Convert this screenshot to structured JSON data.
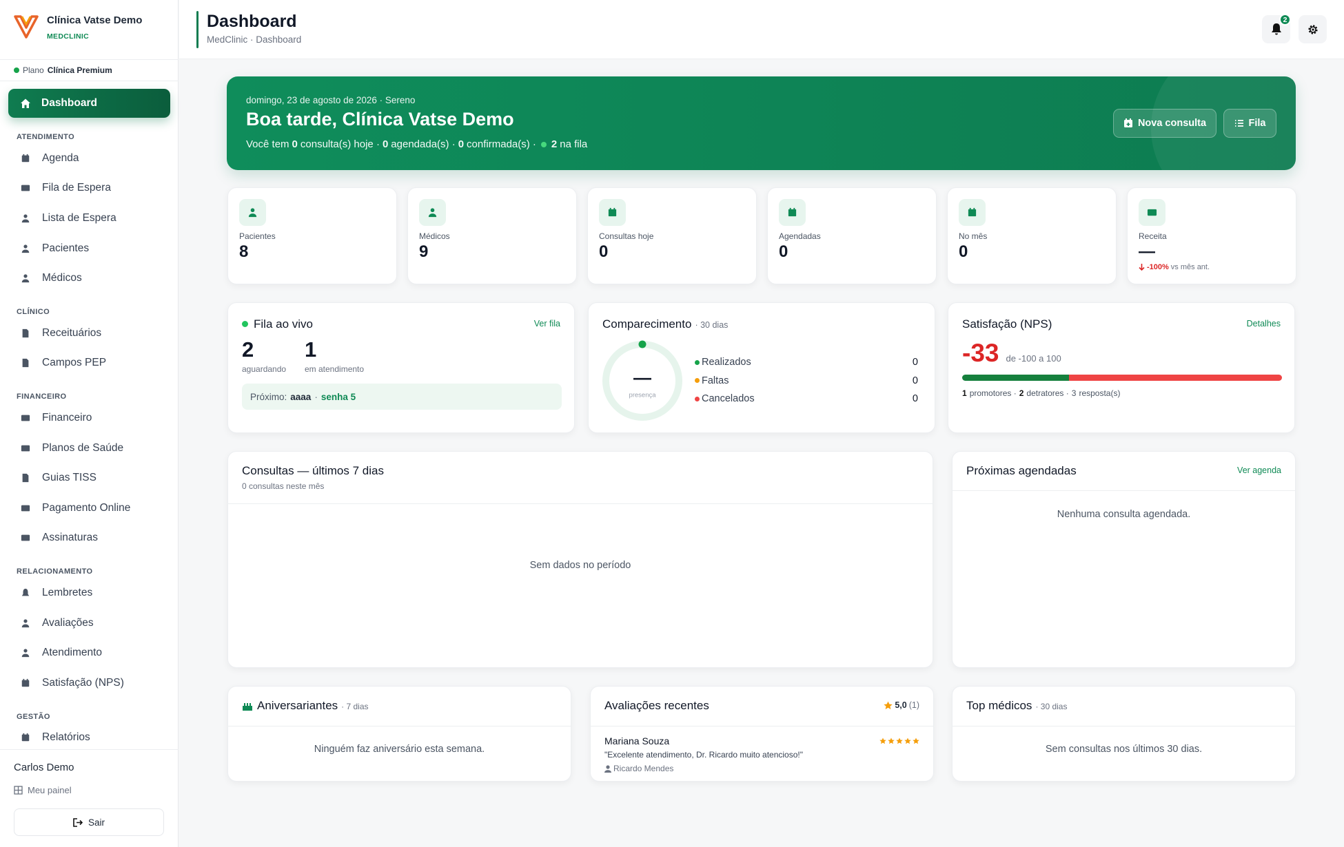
{
  "sidebar": {
    "brand": "Clínica Vatse Demo",
    "brand_sub": "MEDCLINIC",
    "plan_prefix": "Plano",
    "plan": "Clínica Premium",
    "active": "Dashboard",
    "sections": [
      {
        "title": "ATENDIMENTO",
        "items": [
          "Agenda",
          "Fila de Espera",
          "Lista de Espera",
          "Pacientes",
          "Médicos"
        ]
      },
      {
        "title": "CLÍNICO",
        "items": [
          "Receituários",
          "Campos PEP"
        ]
      },
      {
        "title": "FINANCEIRO",
        "items": [
          "Financeiro",
          "Planos de Saúde",
          "Guias TISS",
          "Pagamento Online",
          "Assinaturas"
        ]
      },
      {
        "title": "RELACIONAMENTO",
        "items": [
          "Lembretes",
          "Avaliações",
          "Atendimento",
          "Satisfação (NPS)"
        ]
      },
      {
        "title": "GESTÃO",
        "items": [
          "Relatórios"
        ]
      }
    ],
    "user": "Carlos Demo",
    "user_link": "Meu painel",
    "logout": "Sair"
  },
  "header": {
    "title": "Dashboard",
    "breadcrumb": "MedClinic · Dashboard",
    "notifications": 2
  },
  "hero": {
    "date": "domingo, 23 de agosto de 2026 · Sereno",
    "greeting": "Boa tarde, Clínica Vatse Demo",
    "summary": {
      "prefix": "Você tem",
      "today": 0,
      "today_label": "consulta(s) hoje ·",
      "scheduled": 0,
      "scheduled_label": "agendada(s) ·",
      "confirmed": 0,
      "confirmed_label": "confirmada(s) ·",
      "queue": 2,
      "queue_label": "na fila"
    },
    "buttons": [
      "Nova consulta",
      "Fila"
    ]
  },
  "stats": [
    {
      "label": "Pacientes",
      "value": 8
    },
    {
      "label": "Médicos",
      "value": 9
    },
    {
      "label": "Consultas hoje",
      "value": 0
    },
    {
      "label": "Agendadas",
      "value": 0
    },
    {
      "label": "No mês",
      "value": 0
    },
    {
      "label": "Receita",
      "value": "—",
      "change": "-100%",
      "change_note": "vs mês ant."
    }
  ],
  "queue": {
    "title": "Fila ao vivo",
    "link": "Ver fila",
    "waiting": 2,
    "waiting_label": "aguardando",
    "serving": 1,
    "serving_label": "em atendimento",
    "next_label": "Próximo:",
    "next_name": "aaaa",
    "next_sep": "·",
    "next_ticket": "senha 5"
  },
  "attendance": {
    "title": "Comparecimento",
    "period": "· 30 dias",
    "center": "—",
    "center_label": "presença",
    "legend": [
      {
        "name": "Realizados",
        "value": 0,
        "color": "#16a34a"
      },
      {
        "name": "Faltas",
        "value": 0,
        "color": "#f59e0b"
      },
      {
        "name": "Cancelados",
        "value": 0,
        "color": "#ef4444"
      }
    ]
  },
  "nps": {
    "title": "Satisfação (NPS)",
    "link": "Detalhes",
    "score": -33,
    "range": "de -100 a 100",
    "promoters": 1,
    "promoters_label": "promotores ·",
    "detractors": 2,
    "detractors_label": "detratores ·",
    "responses": 3,
    "responses_label": "resposta(s)"
  },
  "consultations": {
    "title": "Consultas — últimos 7 dias",
    "subtitle": "0 consultas neste mês",
    "empty": "Sem dados no período"
  },
  "upcoming": {
    "title": "Próximas agendadas",
    "link": "Ver agenda",
    "empty": "Nenhuma consulta agendada."
  },
  "birthdays": {
    "title": "Aniversariantes",
    "period": "· 7 dias",
    "empty": "Ninguém faz aniversário esta semana."
  },
  "reviews": {
    "title": "Avaliações recentes",
    "rating": "5,0",
    "count": "(1)",
    "items": [
      {
        "name": "Mariana Souza",
        "stars": 5,
        "text": "\"Excelente atendimento, Dr. Ricardo muito atencioso!\"",
        "doctor": "Ricardo Mendes"
      }
    ]
  },
  "top_doctors": {
    "title": "Top médicos",
    "period": "· 30 dias",
    "empty": "Sem consultas nos últimos 30 dias."
  }
}
